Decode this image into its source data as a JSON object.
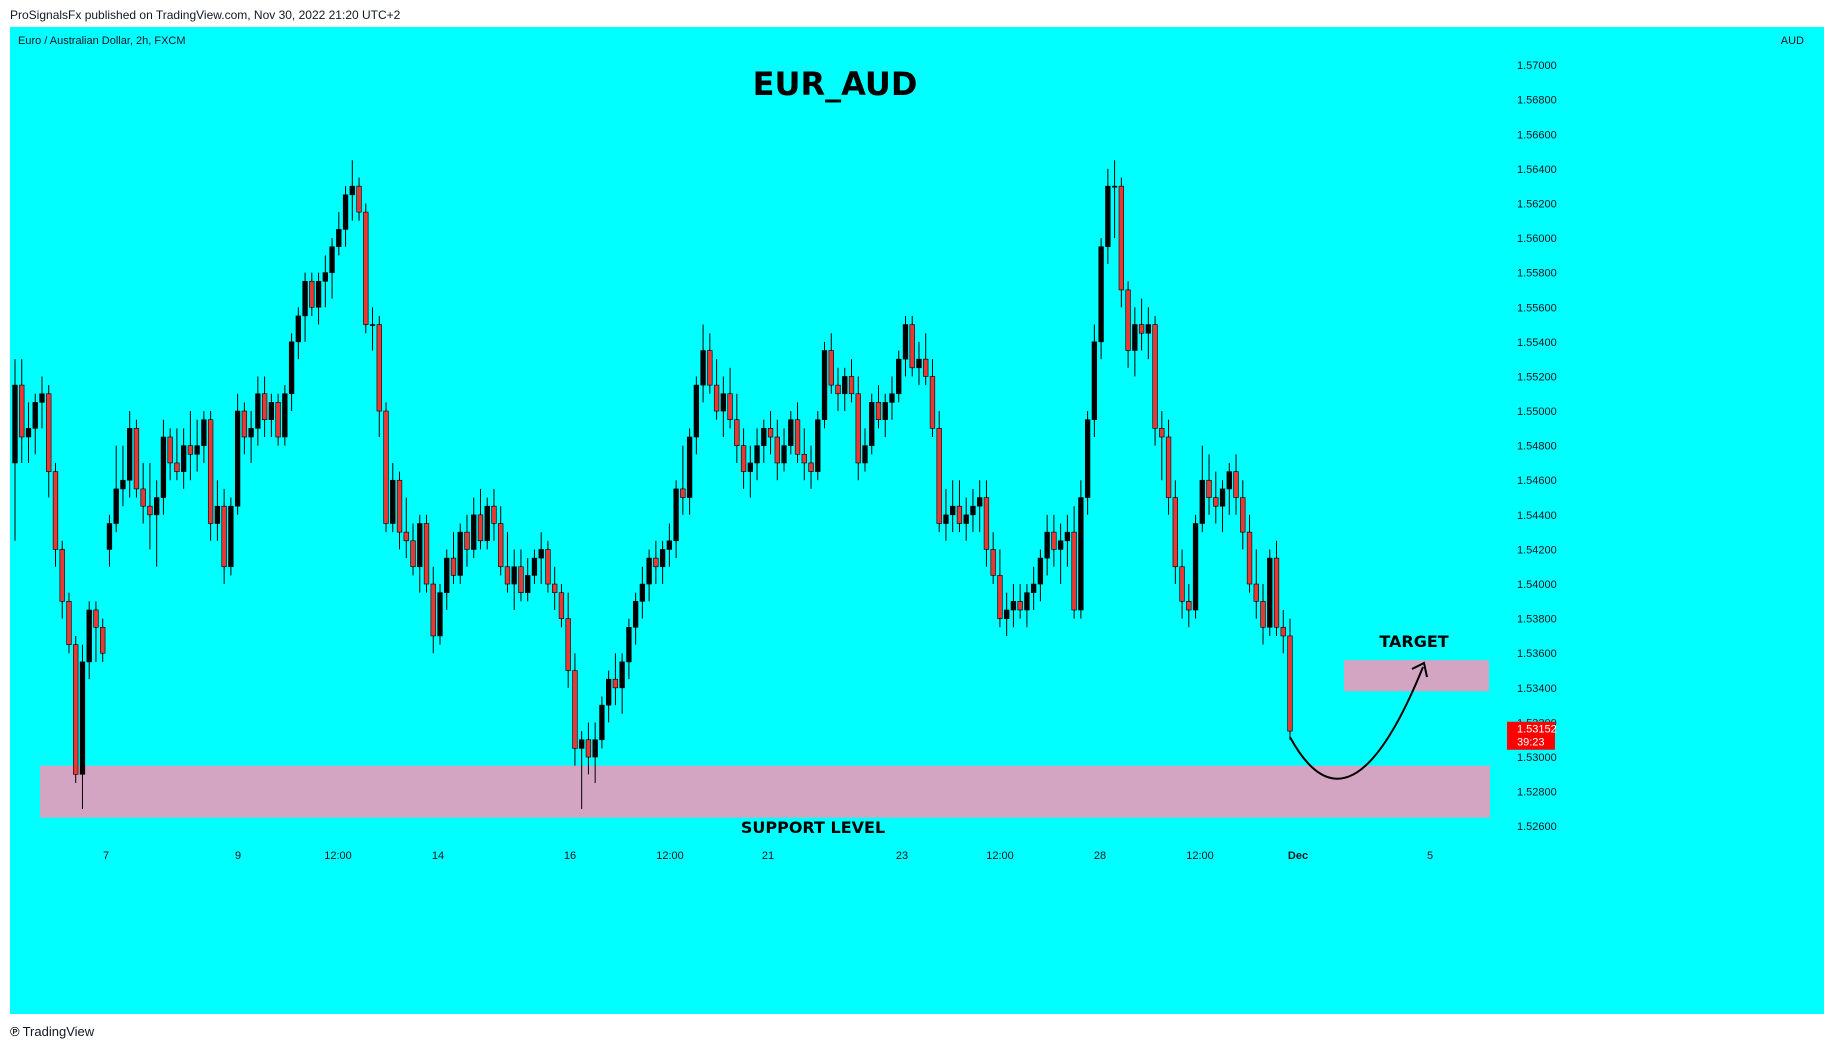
{
  "header": {
    "published": "ProSignalsFx published on TradingView.com, Nov 30, 2022 21:20 UTC+2"
  },
  "chart_data": {
    "type": "candlestick",
    "symbol": "Euro / Australian Dollar, 2h, FXCM",
    "currency": "AUD",
    "title": "EUR_AUD",
    "ylim": [
      1.5248,
      1.5722
    ],
    "y_ticks": [
      "1.57000",
      "1.56800",
      "1.56600",
      "1.56400",
      "1.56200",
      "1.56000",
      "1.55800",
      "1.55600",
      "1.55400",
      "1.55200",
      "1.55000",
      "1.54800",
      "1.54600",
      "1.54400",
      "1.54200",
      "1.54000",
      "1.53800",
      "1.53600",
      "1.53400",
      "1.53200",
      "1.53000",
      "1.52800",
      "1.52600"
    ],
    "x_ticks": [
      "7",
      "9",
      "12:00",
      "14",
      "16",
      "12:00",
      "21",
      "23",
      "12:00",
      "28",
      "12:00",
      "Dec",
      "5"
    ],
    "last_price": "1.53152",
    "countdown": "39:23",
    "annotations": {
      "support_label": "SUPPORT LEVEL",
      "support_zone": [
        1.5265,
        1.5295
      ],
      "target_label": "TARGET",
      "target_zone": [
        1.5338,
        1.5356
      ]
    },
    "colors": {
      "background": "#00ffff",
      "up": "#000000",
      "down": "#e53935",
      "wick": "#000000",
      "zone": "#d4a5c2",
      "price_tag": "#ff0000"
    },
    "candles": [
      [
        1.547,
        1.553,
        1.5425,
        1.5515
      ],
      [
        1.5515,
        1.553,
        1.547,
        1.5485
      ],
      [
        1.5485,
        1.5505,
        1.547,
        1.549
      ],
      [
        1.549,
        1.551,
        1.5475,
        1.5505
      ],
      [
        1.5505,
        1.552,
        1.549,
        1.551
      ],
      [
        1.551,
        1.5515,
        1.545,
        1.5465
      ],
      [
        1.5465,
        1.547,
        1.541,
        1.542
      ],
      [
        1.542,
        1.5425,
        1.538,
        1.539
      ],
      [
        1.539,
        1.5395,
        1.536,
        1.5365
      ],
      [
        1.5365,
        1.537,
        1.5285,
        1.529
      ],
      [
        1.529,
        1.5365,
        1.527,
        1.5355
      ],
      [
        1.5355,
        1.539,
        1.5345,
        1.5385
      ],
      [
        1.5385,
        1.539,
        1.5355,
        1.5375
      ],
      [
        1.5375,
        1.538,
        1.5355,
        1.536
      ],
      [
        1.542,
        1.544,
        1.541,
        1.5435
      ],
      [
        1.5435,
        1.548,
        1.543,
        1.5455
      ],
      [
        1.5455,
        1.548,
        1.5445,
        1.546
      ],
      [
        1.546,
        1.55,
        1.545,
        1.549
      ],
      [
        1.549,
        1.5495,
        1.545,
        1.5455
      ],
      [
        1.5455,
        1.547,
        1.5435,
        1.5445
      ],
      [
        1.5445,
        1.547,
        1.542,
        1.544
      ],
      [
        1.544,
        1.546,
        1.541,
        1.545
      ],
      [
        1.545,
        1.5495,
        1.544,
        1.5485
      ],
      [
        1.5485,
        1.549,
        1.546,
        1.547
      ],
      [
        1.547,
        1.549,
        1.546,
        1.5465
      ],
      [
        1.5465,
        1.549,
        1.5455,
        1.548
      ],
      [
        1.548,
        1.55,
        1.546,
        1.5475
      ],
      [
        1.5475,
        1.5495,
        1.5465,
        1.548
      ],
      [
        1.548,
        1.55,
        1.547,
        1.5495
      ],
      [
        1.5495,
        1.55,
        1.5425,
        1.5435
      ],
      [
        1.5435,
        1.546,
        1.5425,
        1.5445
      ],
      [
        1.5445,
        1.5455,
        1.54,
        1.541
      ],
      [
        1.541,
        1.545,
        1.5405,
        1.5445
      ],
      [
        1.5445,
        1.551,
        1.544,
        1.55
      ],
      [
        1.55,
        1.5505,
        1.5475,
        1.5485
      ],
      [
        1.5485,
        1.55,
        1.547,
        1.549
      ],
      [
        1.549,
        1.552,
        1.548,
        1.551
      ],
      [
        1.551,
        1.552,
        1.5485,
        1.5495
      ],
      [
        1.5495,
        1.551,
        1.5485,
        1.5505
      ],
      [
        1.5505,
        1.551,
        1.548,
        1.5485
      ],
      [
        1.5485,
        1.5515,
        1.548,
        1.551
      ],
      [
        1.551,
        1.5545,
        1.55,
        1.554
      ],
      [
        1.554,
        1.556,
        1.553,
        1.5555
      ],
      [
        1.5555,
        1.558,
        1.554,
        1.5575
      ],
      [
        1.5575,
        1.558,
        1.5555,
        1.556
      ],
      [
        1.556,
        1.558,
        1.555,
        1.5575
      ],
      [
        1.5575,
        1.559,
        1.556,
        1.558
      ],
      [
        1.558,
        1.56,
        1.5565,
        1.5595
      ],
      [
        1.5595,
        1.5615,
        1.559,
        1.5605
      ],
      [
        1.5605,
        1.563,
        1.5595,
        1.5625
      ],
      [
        1.5625,
        1.5645,
        1.561,
        1.563
      ],
      [
        1.563,
        1.5635,
        1.561,
        1.5615
      ],
      [
        1.5615,
        1.562,
        1.5545,
        1.555
      ],
      [
        1.555,
        1.556,
        1.5535,
        1.555
      ],
      [
        1.555,
        1.5555,
        1.5485,
        1.55
      ],
      [
        1.55,
        1.5505,
        1.543,
        1.5435
      ],
      [
        1.5435,
        1.547,
        1.543,
        1.546
      ],
      [
        1.546,
        1.5465,
        1.542,
        1.543
      ],
      [
        1.543,
        1.545,
        1.5415,
        1.5425
      ],
      [
        1.5425,
        1.5435,
        1.5405,
        1.541
      ],
      [
        1.541,
        1.544,
        1.5395,
        1.5435
      ],
      [
        1.5435,
        1.544,
        1.5395,
        1.54
      ],
      [
        1.54,
        1.541,
        1.536,
        1.537
      ],
      [
        1.537,
        1.54,
        1.5365,
        1.5395
      ],
      [
        1.5395,
        1.542,
        1.5385,
        1.5415
      ],
      [
        1.5415,
        1.543,
        1.54,
        1.5405
      ],
      [
        1.5405,
        1.5435,
        1.54,
        1.543
      ],
      [
        1.543,
        1.544,
        1.541,
        1.542
      ],
      [
        1.542,
        1.545,
        1.5415,
        1.544
      ],
      [
        1.544,
        1.5455,
        1.542,
        1.5425
      ],
      [
        1.5425,
        1.545,
        1.542,
        1.5445
      ],
      [
        1.5445,
        1.5455,
        1.5425,
        1.5435
      ],
      [
        1.5435,
        1.5445,
        1.5405,
        1.541
      ],
      [
        1.541,
        1.543,
        1.5395,
        1.54
      ],
      [
        1.54,
        1.542,
        1.5385,
        1.541
      ],
      [
        1.541,
        1.542,
        1.539,
        1.5395
      ],
      [
        1.5395,
        1.5415,
        1.539,
        1.5405
      ],
      [
        1.5405,
        1.542,
        1.54,
        1.5415
      ],
      [
        1.5415,
        1.543,
        1.54,
        1.542
      ],
      [
        1.542,
        1.5425,
        1.5395,
        1.54
      ],
      [
        1.54,
        1.541,
        1.5385,
        1.5395
      ],
      [
        1.5395,
        1.54,
        1.5375,
        1.538
      ],
      [
        1.538,
        1.5395,
        1.534,
        1.535
      ],
      [
        1.535,
        1.536,
        1.5295,
        1.5305
      ],
      [
        1.5305,
        1.5315,
        1.527,
        1.531
      ],
      [
        1.531,
        1.532,
        1.529,
        1.53
      ],
      [
        1.53,
        1.532,
        1.5285,
        1.531
      ],
      [
        1.531,
        1.5335,
        1.5305,
        1.533
      ],
      [
        1.533,
        1.535,
        1.532,
        1.5345
      ],
      [
        1.5345,
        1.536,
        1.533,
        1.534
      ],
      [
        1.534,
        1.536,
        1.5325,
        1.5355
      ],
      [
        1.5355,
        1.538,
        1.5345,
        1.5375
      ],
      [
        1.5375,
        1.5395,
        1.5365,
        1.539
      ],
      [
        1.539,
        1.541,
        1.538,
        1.54
      ],
      [
        1.54,
        1.542,
        1.539,
        1.5415
      ],
      [
        1.5415,
        1.5425,
        1.54,
        1.541
      ],
      [
        1.541,
        1.5425,
        1.54,
        1.542
      ],
      [
        1.542,
        1.5435,
        1.541,
        1.5425
      ],
      [
        1.5425,
        1.546,
        1.5415,
        1.5455
      ],
      [
        1.5455,
        1.548,
        1.544,
        1.545
      ],
      [
        1.545,
        1.549,
        1.544,
        1.5485
      ],
      [
        1.5485,
        1.552,
        1.5475,
        1.5515
      ],
      [
        1.5515,
        1.555,
        1.5505,
        1.5535
      ],
      [
        1.5535,
        1.5545,
        1.551,
        1.5515
      ],
      [
        1.5515,
        1.553,
        1.5495,
        1.55
      ],
      [
        1.55,
        1.552,
        1.5485,
        1.551
      ],
      [
        1.551,
        1.5525,
        1.549,
        1.5495
      ],
      [
        1.5495,
        1.551,
        1.547,
        1.548
      ],
      [
        1.548,
        1.549,
        1.5455,
        1.5465
      ],
      [
        1.5465,
        1.548,
        1.545,
        1.547
      ],
      [
        1.547,
        1.549,
        1.546,
        1.548
      ],
      [
        1.548,
        1.5495,
        1.547,
        1.549
      ],
      [
        1.549,
        1.55,
        1.5475,
        1.5485
      ],
      [
        1.5485,
        1.5495,
        1.546,
        1.547
      ],
      [
        1.547,
        1.549,
        1.5465,
        1.548
      ],
      [
        1.548,
        1.55,
        1.5475,
        1.5495
      ],
      [
        1.5495,
        1.5505,
        1.547,
        1.5475
      ],
      [
        1.5475,
        1.549,
        1.546,
        1.547
      ],
      [
        1.547,
        1.548,
        1.5455,
        1.5465
      ],
      [
        1.5465,
        1.55,
        1.546,
        1.5495
      ],
      [
        1.5495,
        1.554,
        1.549,
        1.5535
      ],
      [
        1.5535,
        1.5545,
        1.551,
        1.5515
      ],
      [
        1.5515,
        1.5525,
        1.55,
        1.551
      ],
      [
        1.551,
        1.5525,
        1.55,
        1.552
      ],
      [
        1.552,
        1.553,
        1.5505,
        1.551
      ],
      [
        1.551,
        1.552,
        1.546,
        1.547
      ],
      [
        1.547,
        1.549,
        1.5465,
        1.548
      ],
      [
        1.548,
        1.551,
        1.5475,
        1.5505
      ],
      [
        1.5505,
        1.5515,
        1.549,
        1.5495
      ],
      [
        1.5495,
        1.551,
        1.5485,
        1.5505
      ],
      [
        1.5505,
        1.552,
        1.5495,
        1.551
      ],
      [
        1.551,
        1.5535,
        1.5505,
        1.553
      ],
      [
        1.553,
        1.5555,
        1.552,
        1.555
      ],
      [
        1.555,
        1.5555,
        1.552,
        1.5525
      ],
      [
        1.5525,
        1.554,
        1.5515,
        1.553
      ],
      [
        1.553,
        1.5545,
        1.5515,
        1.552
      ],
      [
        1.552,
        1.553,
        1.5485,
        1.549
      ],
      [
        1.549,
        1.55,
        1.543,
        1.5435
      ],
      [
        1.5435,
        1.5455,
        1.5425,
        1.544
      ],
      [
        1.544,
        1.546,
        1.543,
        1.5445
      ],
      [
        1.5445,
        1.546,
        1.543,
        1.5435
      ],
      [
        1.5435,
        1.545,
        1.5425,
        1.544
      ],
      [
        1.544,
        1.5455,
        1.543,
        1.5445
      ],
      [
        1.5445,
        1.546,
        1.543,
        1.545
      ],
      [
        1.545,
        1.546,
        1.541,
        1.542
      ],
      [
        1.542,
        1.543,
        1.54,
        1.5405
      ],
      [
        1.5405,
        1.542,
        1.5375,
        1.538
      ],
      [
        1.538,
        1.5395,
        1.537,
        1.5385
      ],
      [
        1.5385,
        1.54,
        1.5375,
        1.539
      ],
      [
        1.539,
        1.54,
        1.538,
        1.5385
      ],
      [
        1.5385,
        1.54,
        1.5375,
        1.5395
      ],
      [
        1.5395,
        1.541,
        1.5385,
        1.54
      ],
      [
        1.54,
        1.542,
        1.539,
        1.5415
      ],
      [
        1.5415,
        1.544,
        1.5405,
        1.543
      ],
      [
        1.543,
        1.544,
        1.541,
        1.542
      ],
      [
        1.542,
        1.5435,
        1.54,
        1.5425
      ],
      [
        1.5425,
        1.544,
        1.541,
        1.543
      ],
      [
        1.543,
        1.5445,
        1.538,
        1.5385
      ],
      [
        1.5385,
        1.546,
        1.538,
        1.545
      ],
      [
        1.545,
        1.55,
        1.544,
        1.5495
      ],
      [
        1.5495,
        1.555,
        1.5485,
        1.554
      ],
      [
        1.554,
        1.56,
        1.553,
        1.5595
      ],
      [
        1.5595,
        1.564,
        1.5585,
        1.563
      ],
      [
        1.563,
        1.5645,
        1.56,
        1.563
      ],
      [
        1.563,
        1.5635,
        1.556,
        1.557
      ],
      [
        1.557,
        1.5575,
        1.5525,
        1.5535
      ],
      [
        1.5535,
        1.556,
        1.552,
        1.555
      ],
      [
        1.555,
        1.5565,
        1.5535,
        1.5545
      ],
      [
        1.5545,
        1.556,
        1.553,
        1.555
      ],
      [
        1.555,
        1.5555,
        1.548,
        1.549
      ],
      [
        1.549,
        1.55,
        1.546,
        1.5485
      ],
      [
        1.5485,
        1.5495,
        1.544,
        1.545
      ],
      [
        1.545,
        1.546,
        1.54,
        1.541
      ],
      [
        1.541,
        1.542,
        1.538,
        1.539
      ],
      [
        1.539,
        1.54,
        1.5375,
        1.5385
      ],
      [
        1.5385,
        1.544,
        1.538,
        1.5435
      ],
      [
        1.5435,
        1.548,
        1.543,
        1.546
      ],
      [
        1.546,
        1.5475,
        1.544,
        1.545
      ],
      [
        1.545,
        1.5465,
        1.5435,
        1.5445
      ],
      [
        1.5445,
        1.546,
        1.543,
        1.5455
      ],
      [
        1.5455,
        1.547,
        1.544,
        1.5465
      ],
      [
        1.5465,
        1.5475,
        1.544,
        1.545
      ],
      [
        1.545,
        1.546,
        1.542,
        1.543
      ],
      [
        1.543,
        1.544,
        1.5395,
        1.54
      ],
      [
        1.54,
        1.542,
        1.538,
        1.539
      ],
      [
        1.539,
        1.54,
        1.5365,
        1.5375
      ],
      [
        1.5375,
        1.542,
        1.537,
        1.5415
      ],
      [
        1.5415,
        1.5425,
        1.537,
        1.5375
      ],
      [
        1.5375,
        1.5385,
        1.536,
        1.537
      ],
      [
        1.537,
        1.538,
        1.531,
        1.5315
      ]
    ]
  },
  "footer": {
    "brand": "TradingView"
  }
}
